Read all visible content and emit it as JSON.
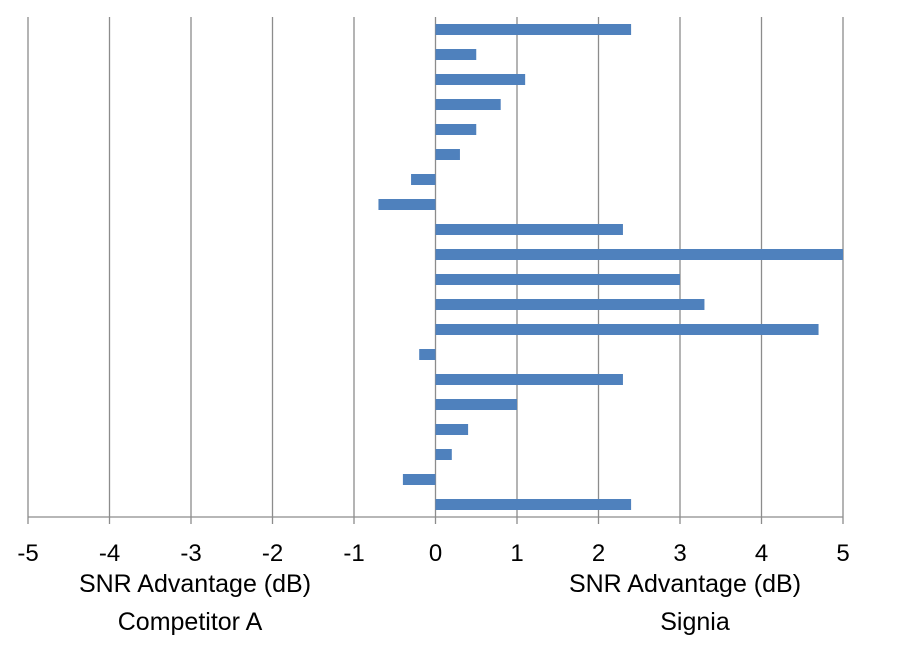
{
  "chart_data": {
    "type": "bar",
    "orientation": "horizontal",
    "xlim": [
      -5,
      5
    ],
    "x_ticks": [
      "-5",
      "-4",
      "-3",
      "-2",
      "-1",
      "0",
      "1",
      "2",
      "3",
      "4",
      "5"
    ],
    "grid": true,
    "values": [
      2.4,
      0.5,
      1.1,
      0.8,
      0.5,
      0.3,
      -0.3,
      -0.7,
      2.3,
      5.0,
      3.0,
      3.3,
      4.7,
      -0.2,
      2.3,
      1.0,
      0.4,
      0.2,
      -0.4,
      2.4
    ],
    "bar_color": "#4F81BD",
    "left_axis_label": {
      "line1": "SNR Advantage (dB)",
      "line2": "Competitor A"
    },
    "right_axis_label": {
      "line1": "SNR Advantage (dB)",
      "line2": "Signia"
    }
  }
}
